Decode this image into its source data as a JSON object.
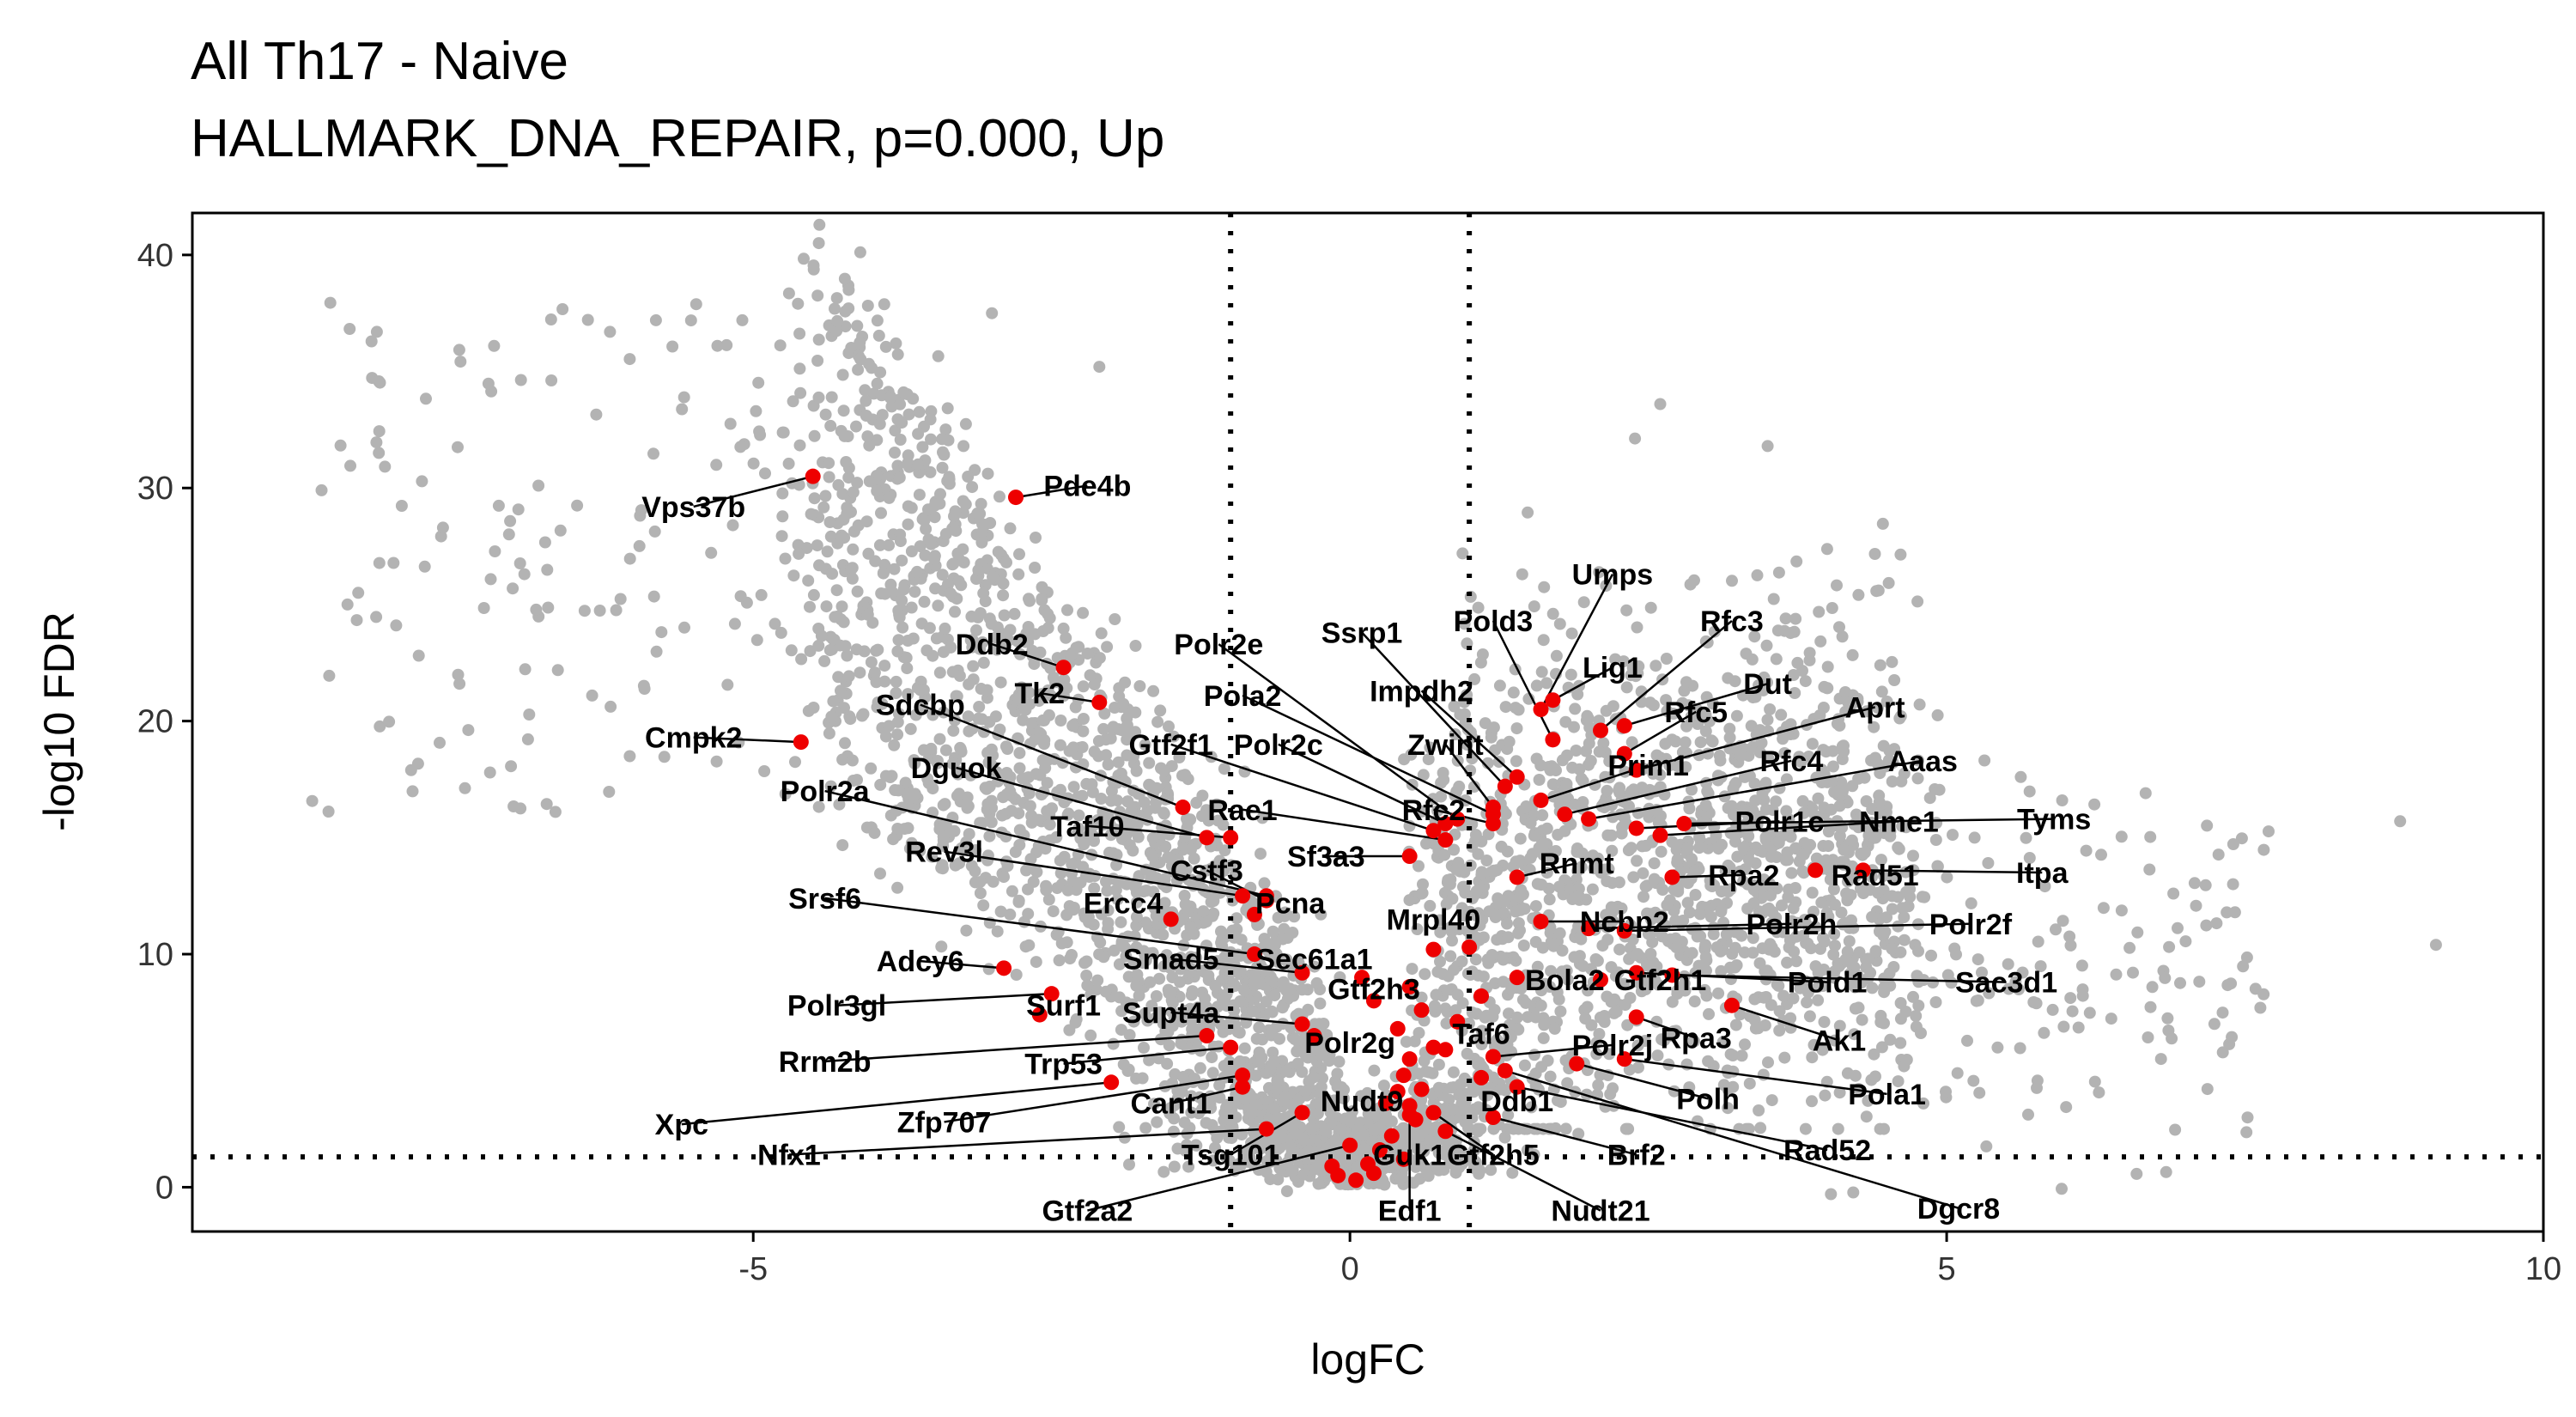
{
  "chart_data": {
    "type": "scatter",
    "title": "All Th17 - Naive",
    "subtitle": "HALLMARK_DNA_REPAIR, p=0.000, Up",
    "xlabel": "logFC",
    "ylabel": "-log10 FDR",
    "xlim": [
      -9.7,
      10
    ],
    "ylim": [
      -1.9,
      41.8
    ],
    "x_ticks": [
      -5,
      0,
      5,
      10
    ],
    "y_ticks": [
      0,
      10,
      20,
      30,
      40
    ],
    "x_tick_labels": [
      "-5",
      "0",
      "5",
      "10"
    ],
    "y_tick_labels": [
      "0",
      "10",
      "20",
      "30",
      "40"
    ],
    "thresholds": {
      "logfc": [
        -1,
        1
      ],
      "neg_log10_fdr": 1.3
    },
    "grid": false,
    "legend": "none",
    "colors": {
      "background_genes": "#b3b3b3",
      "highlighted_genes": "#ee0000",
      "threshold_lines": "#000000"
    },
    "background_genes_note": "",
    "labeled_genes": [
      {
        "gene": "Vps37b",
        "x": -4.5,
        "y": 30.5,
        "lx": -5.5,
        "ly": 29.2
      },
      {
        "gene": "Pde4b",
        "x": -2.8,
        "y": 29.6,
        "lx": -2.2,
        "ly": 30.1
      },
      {
        "gene": "Ddb2",
        "x": -2.4,
        "y": 22.3,
        "lx": -3.0,
        "ly": 23.3
      },
      {
        "gene": "Tk2",
        "x": -2.1,
        "y": 20.8,
        "lx": -2.6,
        "ly": 21.2
      },
      {
        "gene": "Cmpk2",
        "x": -4.6,
        "y": 19.1,
        "lx": -5.5,
        "ly": 19.3
      },
      {
        "gene": "Sdcbp",
        "x": -1.4,
        "y": 16.3,
        "lx": -3.6,
        "ly": 20.7
      },
      {
        "gene": "Polr2e",
        "x": 0.9,
        "y": 15.8,
        "lx": -1.1,
        "ly": 23.3
      },
      {
        "gene": "Pola2",
        "x": 1.2,
        "y": 16.0,
        "lx": -0.9,
        "ly": 21.1
      },
      {
        "gene": "Ssrp1",
        "x": 1.3,
        "y": 17.2,
        "lx": 0.1,
        "ly": 23.8
      },
      {
        "gene": "Impdh2",
        "x": 1.4,
        "y": 17.6,
        "lx": 0.6,
        "ly": 21.3
      },
      {
        "gene": "Pold3",
        "x": 1.7,
        "y": 19.2,
        "lx": 1.2,
        "ly": 24.3
      },
      {
        "gene": "Umps",
        "x": 1.6,
        "y": 20.5,
        "lx": 2.2,
        "ly": 26.3
      },
      {
        "gene": "Rfc3",
        "x": 2.1,
        "y": 19.6,
        "lx": 3.2,
        "ly": 24.3
      },
      {
        "gene": "Lig1",
        "x": 1.7,
        "y": 20.9,
        "lx": 2.2,
        "ly": 22.3
      },
      {
        "gene": "Dut",
        "x": 2.3,
        "y": 19.8,
        "lx": 3.5,
        "ly": 21.6
      },
      {
        "gene": "Rfc5",
        "x": 2.3,
        "y": 18.6,
        "lx": 2.9,
        "ly": 20.4
      },
      {
        "gene": "Aprt",
        "x": 2.4,
        "y": 17.9,
        "lx": 4.4,
        "ly": 20.6
      },
      {
        "gene": "Gtf2f1",
        "x": 0.7,
        "y": 15.3,
        "lx": -1.5,
        "ly": 19.0
      },
      {
        "gene": "Polr2c",
        "x": 0.8,
        "y": 15.6,
        "lx": -0.6,
        "ly": 19.0
      },
      {
        "gene": "Zwint",
        "x": 1.2,
        "y": 16.3,
        "lx": 0.8,
        "ly": 19.0
      },
      {
        "gene": "Prim1",
        "x": 1.6,
        "y": 16.6,
        "lx": 2.5,
        "ly": 18.1
      },
      {
        "gene": "Rfc4",
        "x": 1.8,
        "y": 16.0,
        "lx": 3.7,
        "ly": 18.3
      },
      {
        "gene": "Aaas",
        "x": 2.0,
        "y": 15.8,
        "lx": 4.8,
        "ly": 18.3
      },
      {
        "gene": "Dguok",
        "x": -1.2,
        "y": 15.0,
        "lx": -3.3,
        "ly": 18.0
      },
      {
        "gene": "Rfc2",
        "x": 1.2,
        "y": 15.6,
        "lx": 0.7,
        "ly": 16.2
      },
      {
        "gene": "Rae1",
        "x": 0.8,
        "y": 14.9,
        "lx": -0.9,
        "ly": 16.2
      },
      {
        "gene": "Polr1c",
        "x": 2.4,
        "y": 15.4,
        "lx": 3.6,
        "ly": 15.7
      },
      {
        "gene": "Nme1",
        "x": 2.6,
        "y": 15.1,
        "lx": 4.6,
        "ly": 15.7
      },
      {
        "gene": "Tyms",
        "x": 2.8,
        "y": 15.6,
        "lx": 5.9,
        "ly": 15.8
      },
      {
        "gene": "Polr2a",
        "x": -0.7,
        "y": 12.5,
        "lx": -4.4,
        "ly": 17.0
      },
      {
        "gene": "Taf10",
        "x": -1.0,
        "y": 15.0,
        "lx": -2.2,
        "ly": 15.5
      },
      {
        "gene": "Sf3a3",
        "x": 0.5,
        "y": 14.2,
        "lx": -0.2,
        "ly": 14.2
      },
      {
        "gene": "Rnmt",
        "x": 1.4,
        "y": 13.3,
        "lx": 1.9,
        "ly": 13.9
      },
      {
        "gene": "Rpa2",
        "x": 2.7,
        "y": 13.3,
        "lx": 3.3,
        "ly": 13.4
      },
      {
        "gene": "Rad51",
        "x": 3.9,
        "y": 13.6,
        "lx": 4.4,
        "ly": 13.4
      },
      {
        "gene": "Itpa",
        "x": 4.3,
        "y": 13.6,
        "lx": 5.8,
        "ly": 13.5
      },
      {
        "gene": "Rev3l",
        "x": -0.9,
        "y": 12.5,
        "lx": -3.4,
        "ly": 14.4
      },
      {
        "gene": "Cstf3",
        "x": -0.7,
        "y": 12.3,
        "lx": -1.2,
        "ly": 13.6
      },
      {
        "gene": "Srsf6",
        "x": -0.8,
        "y": 10.0,
        "lx": -4.4,
        "ly": 12.4
      },
      {
        "gene": "Ercc4",
        "x": -1.5,
        "y": 11.5,
        "lx": -1.9,
        "ly": 12.2
      },
      {
        "gene": "Pcna",
        "x": -0.8,
        "y": 11.7,
        "lx": -0.5,
        "ly": 12.2
      },
      {
        "gene": "Mrpl40",
        "x": 0.7,
        "y": 10.2,
        "lx": 0.7,
        "ly": 11.5
      },
      {
        "gene": "Ncbp2",
        "x": 1.6,
        "y": 11.4,
        "lx": 2.3,
        "ly": 11.4
      },
      {
        "gene": "Polr2h",
        "x": 2.0,
        "y": 11.1,
        "lx": 3.7,
        "ly": 11.3
      },
      {
        "gene": "Polr2f",
        "x": 2.3,
        "y": 11.0,
        "lx": 5.2,
        "ly": 11.3
      },
      {
        "gene": "Adcy6",
        "x": -2.9,
        "y": 9.4,
        "lx": -3.6,
        "ly": 9.7
      },
      {
        "gene": "Smad5",
        "x": -0.4,
        "y": 9.2,
        "lx": -1.5,
        "ly": 9.8
      },
      {
        "gene": "Sec61a1",
        "x": 0.1,
        "y": 9.0,
        "lx": -0.3,
        "ly": 9.8
      },
      {
        "gene": "Bola2",
        "x": 1.4,
        "y": 9.0,
        "lx": 1.8,
        "ly": 8.9
      },
      {
        "gene": "Gtf2h1",
        "x": 2.1,
        "y": 8.9,
        "lx": 2.6,
        "ly": 8.9
      },
      {
        "gene": "Pold1",
        "x": 2.4,
        "y": 9.2,
        "lx": 4.0,
        "ly": 8.8
      },
      {
        "gene": "Sac3d1",
        "x": 2.7,
        "y": 9.1,
        "lx": 5.5,
        "ly": 8.8
      },
      {
        "gene": "Gtf2h3",
        "x": 0.2,
        "y": 8.0,
        "lx": 0.2,
        "ly": 8.5
      },
      {
        "gene": "Polr3gl",
        "x": -2.5,
        "y": 8.3,
        "lx": -4.3,
        "ly": 7.8
      },
      {
        "gene": "Surf1",
        "x": -2.6,
        "y": 7.4,
        "lx": -2.4,
        "ly": 7.8
      },
      {
        "gene": "Supt4a",
        "x": -0.4,
        "y": 7.0,
        "lx": -1.5,
        "ly": 7.5
      },
      {
        "gene": "Ak1",
        "x": 3.2,
        "y": 7.8,
        "lx": 4.1,
        "ly": 6.3
      },
      {
        "gene": "Rpa3",
        "x": 2.4,
        "y": 7.3,
        "lx": 2.9,
        "ly": 6.4
      },
      {
        "gene": "Polr2g",
        "x": -0.3,
        "y": 6.5,
        "lx": 0.0,
        "ly": 6.2
      },
      {
        "gene": "Taf6",
        "x": 0.8,
        "y": 5.9,
        "lx": 1.1,
        "ly": 6.6
      },
      {
        "gene": "Polr2j",
        "x": 1.2,
        "y": 5.6,
        "lx": 2.2,
        "ly": 6.1
      },
      {
        "gene": "Rrm2b",
        "x": -1.2,
        "y": 6.5,
        "lx": -4.4,
        "ly": 5.4
      },
      {
        "gene": "Trp53",
        "x": -1.0,
        "y": 6.0,
        "lx": -2.4,
        "ly": 5.3
      },
      {
        "gene": "Pola1",
        "x": 2.3,
        "y": 5.5,
        "lx": 4.5,
        "ly": 4.0
      },
      {
        "gene": "Polh",
        "x": 1.9,
        "y": 5.3,
        "lx": 3.0,
        "ly": 3.8
      },
      {
        "gene": "Cant1",
        "x": -0.9,
        "y": 4.3,
        "lx": -1.5,
        "ly": 3.6
      },
      {
        "gene": "Nudt9",
        "x": 0.4,
        "y": 4.1,
        "lx": 0.1,
        "ly": 3.7
      },
      {
        "gene": "Ddb1",
        "x": 1.1,
        "y": 4.7,
        "lx": 1.4,
        "ly": 3.7
      },
      {
        "gene": "Xpc",
        "x": -2.0,
        "y": 4.5,
        "lx": -5.6,
        "ly": 2.7
      },
      {
        "gene": "Zfp707",
        "x": -0.9,
        "y": 4.8,
        "lx": -3.4,
        "ly": 2.8
      },
      {
        "gene": "Rad52",
        "x": 1.4,
        "y": 4.3,
        "lx": 4.0,
        "ly": 1.6
      },
      {
        "gene": "Brf2",
        "x": 1.2,
        "y": 3.0,
        "lx": 2.4,
        "ly": 1.4
      },
      {
        "gene": "Gtf2h5",
        "x": 0.7,
        "y": 3.2,
        "lx": 1.2,
        "ly": 1.4
      },
      {
        "gene": "Guk1",
        "x": 0.5,
        "y": 3.5,
        "lx": 0.5,
        "ly": 1.4
      },
      {
        "gene": "Tsg101",
        "x": -0.4,
        "y": 3.2,
        "lx": -1.0,
        "ly": 1.4
      },
      {
        "gene": "Nfx1",
        "x": -0.7,
        "y": 2.5,
        "lx": -4.7,
        "ly": 1.4
      },
      {
        "gene": "Dgcr8",
        "x": 1.3,
        "y": 5.0,
        "lx": 5.1,
        "ly": -0.9
      },
      {
        "gene": "Gtf2a2",
        "x": 0.0,
        "y": 1.8,
        "lx": -2.2,
        "ly": -1.0
      },
      {
        "gene": "Edf1",
        "x": 0.5,
        "y": 3.1,
        "lx": 0.5,
        "ly": -1.0
      },
      {
        "gene": "Nudt21",
        "x": 0.8,
        "y": 2.4,
        "lx": 2.1,
        "ly": -1.0
      }
    ]
  }
}
